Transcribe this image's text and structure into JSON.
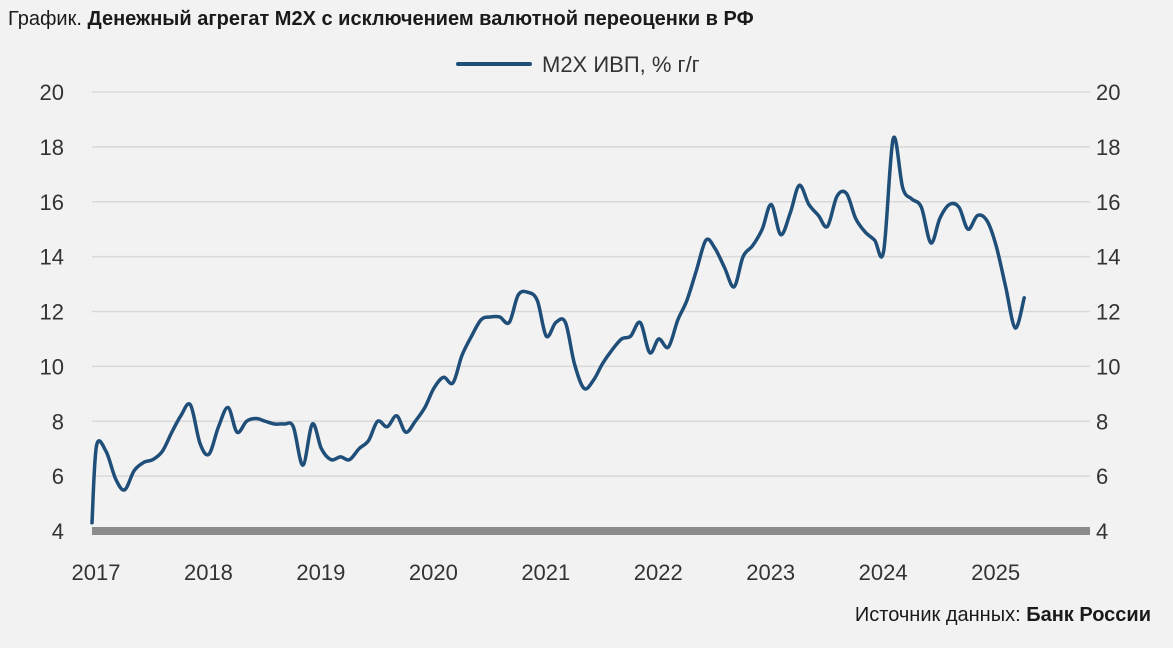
{
  "header": {
    "prefix": "График.",
    "title": "Денежный агрегат М2Х с исключением валютной переоценки в РФ"
  },
  "footer": {
    "source_label": "Источник данных:",
    "source_name": "Банк России"
  },
  "colors": {
    "line": "#1f4e79",
    "grid": "#d9d9d9",
    "baseline": "#8c8c8c",
    "background": "#f2f2f2"
  },
  "chart_data": {
    "type": "line",
    "title": "Денежный агрегат М2Х с исключением валютной переоценки в РФ",
    "xlabel": "",
    "ylabel": "",
    "ylim": [
      4,
      20
    ],
    "yticks": [
      4,
      6,
      8,
      10,
      12,
      14,
      16,
      18,
      20
    ],
    "xlim": [
      2017,
      2025.875
    ],
    "xticks": [
      {
        "value": 2017,
        "label": "2017"
      },
      {
        "value": 2018,
        "label": "2018"
      },
      {
        "value": 2019,
        "label": "2019"
      },
      {
        "value": 2020,
        "label": "2020"
      },
      {
        "value": 2021,
        "label": "2021"
      },
      {
        "value": 2022,
        "label": "2022"
      },
      {
        "value": 2023,
        "label": "2023"
      },
      {
        "value": 2024,
        "label": "2024"
      },
      {
        "value": 2025,
        "label": "2025"
      }
    ],
    "grid": "horizontal",
    "secondary_y_axis": true,
    "legend_position": "top-center",
    "series": [
      {
        "name": "М2Х ИВП, % г/г",
        "x": [
          2017.0,
          2017.04,
          2017.125,
          2017.21,
          2017.29,
          2017.375,
          2017.46,
          2017.54,
          2017.625,
          2017.71,
          2017.79,
          2017.875,
          2017.96,
          2018.04,
          2018.125,
          2018.21,
          2018.29,
          2018.375,
          2018.46,
          2018.54,
          2018.625,
          2018.71,
          2018.79,
          2018.875,
          2018.96,
          2019.04,
          2019.125,
          2019.21,
          2019.29,
          2019.375,
          2019.46,
          2019.54,
          2019.625,
          2019.71,
          2019.79,
          2019.875,
          2019.96,
          2020.04,
          2020.125,
          2020.21,
          2020.29,
          2020.375,
          2020.46,
          2020.54,
          2020.625,
          2020.71,
          2020.79,
          2020.875,
          2020.96,
          2021.04,
          2021.125,
          2021.21,
          2021.29,
          2021.375,
          2021.46,
          2021.54,
          2021.625,
          2021.71,
          2021.79,
          2021.875,
          2021.96,
          2022.04,
          2022.125,
          2022.21,
          2022.29,
          2022.375,
          2022.46,
          2022.54,
          2022.625,
          2022.71,
          2022.79,
          2022.875,
          2022.96,
          2023.04,
          2023.125,
          2023.21,
          2023.29,
          2023.375,
          2023.46,
          2023.54,
          2023.625,
          2023.71,
          2023.79,
          2023.875,
          2023.96,
          2024.04,
          2024.125,
          2024.21,
          2024.29,
          2024.375,
          2024.46,
          2024.54,
          2024.625,
          2024.71,
          2024.79,
          2024.875,
          2024.96,
          2025.04,
          2025.125,
          2025.21,
          2025.29
        ],
        "values": [
          4.3,
          7.1,
          6.9,
          5.9,
          5.5,
          6.2,
          6.5,
          6.6,
          6.9,
          7.6,
          8.2,
          8.6,
          7.2,
          6.8,
          7.8,
          8.5,
          7.6,
          8.0,
          8.1,
          8.0,
          7.9,
          7.9,
          7.8,
          6.4,
          7.9,
          7.0,
          6.6,
          6.7,
          6.6,
          7.0,
          7.3,
          8.0,
          7.8,
          8.2,
          7.6,
          8.0,
          8.5,
          9.2,
          9.6,
          9.4,
          10.4,
          11.1,
          11.7,
          11.8,
          11.8,
          11.6,
          12.6,
          12.7,
          12.4,
          11.1,
          11.6,
          11.6,
          10.1,
          9.2,
          9.5,
          10.1,
          10.6,
          11.0,
          11.1,
          11.6,
          10.5,
          11.0,
          10.7,
          11.7,
          12.4,
          13.5,
          14.6,
          14.3,
          13.6,
          12.9,
          14.0,
          14.4,
          15.0,
          15.9,
          14.8,
          15.6,
          16.6,
          15.9,
          15.5,
          15.1,
          16.2,
          16.3,
          15.4,
          14.9,
          14.6,
          14.2,
          18.3,
          16.5,
          16.1,
          15.8,
          14.5,
          15.4,
          15.9,
          15.8,
          15.0,
          15.5,
          15.3,
          14.4,
          12.9,
          11.4,
          12.5
        ]
      }
    ]
  }
}
